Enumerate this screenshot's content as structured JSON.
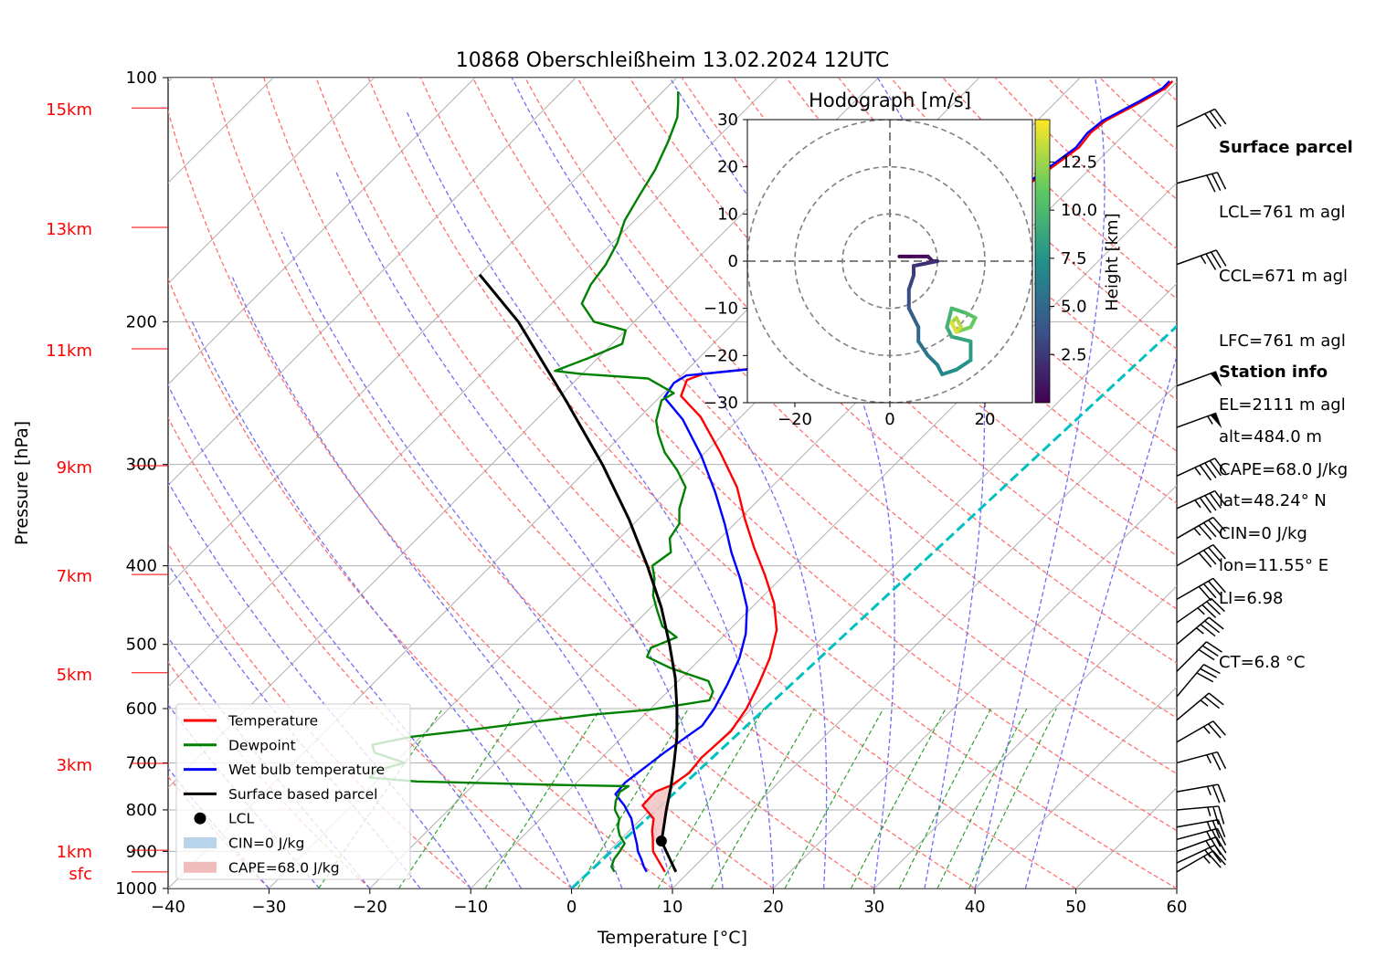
{
  "chart_data": {
    "type": "line",
    "subtype": "skew-T log-p sounding",
    "title": "10868 Oberschleißheim 13.02.2024 12UTC",
    "xlabel": "Temperature [°C]",
    "ylabel": "Pressure [hPa]",
    "xlim": [
      -40,
      60
    ],
    "ylim": [
      1000,
      100
    ],
    "x_ticks": [
      "−40",
      "−30",
      "−20",
      "−10",
      "0",
      "10",
      "20",
      "30",
      "40",
      "50",
      "60"
    ],
    "x_tick_values": [
      -40,
      -30,
      -20,
      -10,
      0,
      10,
      20,
      30,
      40,
      50,
      60
    ],
    "y_ticks": [
      "100",
      "200",
      "300",
      "400",
      "500",
      "600",
      "700",
      "800",
      "900",
      "1000"
    ],
    "y_tick_values": [
      100,
      200,
      300,
      400,
      500,
      600,
      700,
      800,
      900,
      1000
    ],
    "height_labels": [
      {
        "label": "sfc",
        "p": 954
      },
      {
        "label": "1km",
        "p": 897
      },
      {
        "label": "3km",
        "p": 701
      },
      {
        "label": "5km",
        "p": 542
      },
      {
        "label": "7km",
        "p": 410
      },
      {
        "label": "9km",
        "p": 301
      },
      {
        "label": "11km",
        "p": 216
      },
      {
        "label": "13km",
        "p": 153
      },
      {
        "label": "15km",
        "p": 109
      }
    ],
    "grid": true,
    "legend_position": "lower-left",
    "legend": [
      "Temperature",
      "Dewpoint",
      "Wet bulb temperature",
      "Surface based parcel",
      "LCL",
      "CIN=0 J/kg",
      "CAPE=68.0 J/kg"
    ],
    "lcl": {
      "p": 874,
      "t": 4.2
    },
    "series": [
      {
        "name": "Temperature",
        "color": "#ff0000",
        "points": [
          [
            7.6,
            954
          ],
          [
            6.8,
            940
          ],
          [
            5.6,
            920
          ],
          [
            4.4,
            900
          ],
          [
            3.6,
            880
          ],
          [
            3.2,
            870
          ],
          [
            2.3,
            850
          ],
          [
            1.2,
            820
          ],
          [
            -1.2,
            790
          ],
          [
            -1.3,
            760
          ],
          [
            -0.3,
            745
          ],
          [
            0.2,
            720
          ],
          [
            -0.1,
            690
          ],
          [
            0.2,
            640
          ],
          [
            -0.5,
            600
          ],
          [
            -1.7,
            560
          ],
          [
            -3.2,
            520
          ],
          [
            -5.3,
            480
          ],
          [
            -8.2,
            445
          ],
          [
            -12.0,
            410
          ],
          [
            -15.7,
            380
          ],
          [
            -19.5,
            350
          ],
          [
            -23.4,
            320
          ],
          [
            -28.5,
            290
          ],
          [
            -34.0,
            262
          ],
          [
            -38.0,
            247
          ],
          [
            -39.0,
            236
          ],
          [
            -38.0,
            232
          ],
          [
            -33.0,
            228
          ],
          [
            -30.0,
            222
          ],
          [
            -30.5,
            215
          ],
          [
            -31.0,
            209
          ],
          [
            -31.5,
            206
          ],
          [
            -32.0,
            204
          ],
          [
            -31.5,
            197
          ],
          [
            -29.5,
            190
          ],
          [
            -27.5,
            187
          ],
          [
            -26.5,
            180
          ],
          [
            -26.5,
            175
          ],
          [
            -27.0,
            167
          ],
          [
            -26.5,
            158
          ],
          [
            -25.5,
            151
          ],
          [
            -25.5,
            146
          ],
          [
            -24.5,
            140
          ],
          [
            -24.5,
            135
          ],
          [
            -23.8,
            128
          ],
          [
            -23.2,
            122
          ],
          [
            -23.5,
            117
          ],
          [
            -23.2,
            113
          ],
          [
            -21.5,
            107
          ],
          [
            -20.5,
            103
          ],
          [
            -20.5,
            101
          ]
        ]
      },
      {
        "name": "Wet bulb temperature",
        "color": "#0000ff",
        "points": [
          [
            5.8,
            954
          ],
          [
            5.0,
            940
          ],
          [
            4.0,
            920
          ],
          [
            2.9,
            900
          ],
          [
            2.0,
            880
          ],
          [
            1.5,
            870
          ],
          [
            0.5,
            850
          ],
          [
            -1.0,
            820
          ],
          [
            -3.0,
            790
          ],
          [
            -5.0,
            765
          ],
          [
            -5.2,
            740
          ],
          [
            -4.9,
            720
          ],
          [
            -4.3,
            680
          ],
          [
            -3.2,
            630
          ],
          [
            -3.7,
            600
          ],
          [
            -4.8,
            560
          ],
          [
            -6.2,
            520
          ],
          [
            -8.0,
            485
          ],
          [
            -10.5,
            450
          ],
          [
            -14.0,
            415
          ],
          [
            -17.5,
            385
          ],
          [
            -21.0,
            355
          ],
          [
            -25.0,
            325
          ],
          [
            -30.0,
            293
          ],
          [
            -35.5,
            264
          ],
          [
            -39.5,
            248
          ],
          [
            -40.0,
            238
          ],
          [
            -39.5,
            233
          ],
          [
            -34.0,
            229
          ],
          [
            -31.0,
            222
          ],
          [
            -31.2,
            215
          ],
          [
            -31.8,
            209
          ],
          [
            -32.2,
            205
          ],
          [
            -32.7,
            203
          ],
          [
            -32.2,
            197
          ],
          [
            -30.0,
            190
          ],
          [
            -28.0,
            187
          ],
          [
            -26.8,
            180
          ],
          [
            -26.8,
            175
          ],
          [
            -27.3,
            167
          ],
          [
            -26.8,
            158
          ],
          [
            -25.8,
            151
          ],
          [
            -25.8,
            146
          ],
          [
            -24.8,
            140
          ],
          [
            -24.8,
            135
          ],
          [
            -24.1,
            128
          ],
          [
            -23.5,
            122
          ],
          [
            -23.8,
            117
          ],
          [
            -23.5,
            113
          ],
          [
            -21.8,
            107
          ],
          [
            -20.8,
            103
          ],
          [
            -20.8,
            101
          ]
        ]
      },
      {
        "name": "Dewpoint",
        "color": "#008000",
        "points": [
          [
            2.6,
            954
          ],
          [
            1.8,
            940
          ],
          [
            1.3,
            920
          ],
          [
            1.1,
            900
          ],
          [
            0.8,
            880
          ],
          [
            -0.5,
            860
          ],
          [
            -1.5,
            840
          ],
          [
            -2.2,
            820
          ],
          [
            -3.5,
            800
          ],
          [
            -4.3,
            780
          ],
          [
            -4.8,
            760
          ],
          [
            -4.5,
            748
          ],
          [
            -12.0,
            745
          ],
          [
            -26.0,
            738
          ],
          [
            -31.0,
            730
          ],
          [
            -31.0,
            715
          ],
          [
            -29.0,
            700
          ],
          [
            -33.0,
            680
          ],
          [
            -34.0,
            665
          ],
          [
            -31.0,
            650
          ],
          [
            -26.0,
            638
          ],
          [
            -20.0,
            622
          ],
          [
            -15.0,
            610
          ],
          [
            -10.0,
            602
          ],
          [
            -5.0,
            586
          ],
          [
            -5.5,
            572
          ],
          [
            -7.0,
            555
          ],
          [
            -12.0,
            535
          ],
          [
            -15.5,
            518
          ],
          [
            -16.0,
            505
          ],
          [
            -14.5,
            490
          ],
          [
            -17.0,
            475
          ],
          [
            -19.0,
            455
          ],
          [
            -21.0,
            435
          ],
          [
            -22.5,
            415
          ],
          [
            -24.0,
            400
          ],
          [
            -23.5,
            385
          ],
          [
            -25.0,
            370
          ],
          [
            -25.5,
            355
          ],
          [
            -27.0,
            340
          ],
          [
            -28.5,
            320
          ],
          [
            -31.0,
            305
          ],
          [
            -34.0,
            290
          ],
          [
            -36.5,
            275
          ],
          [
            -38.0,
            265
          ],
          [
            -39.5,
            250
          ],
          [
            -39.0,
            245
          ],
          [
            -43.0,
            235
          ],
          [
            -50.0,
            232
          ],
          [
            -53.0,
            230
          ],
          [
            -51.0,
            222
          ],
          [
            -49.0,
            213
          ],
          [
            -50.0,
            205
          ],
          [
            -54.0,
            200
          ],
          [
            -57.0,
            190
          ],
          [
            -58.0,
            180
          ],
          [
            -58.5,
            170
          ],
          [
            -59.5,
            160
          ],
          [
            -61.0,
            150
          ],
          [
            -62.0,
            140
          ],
          [
            -63.0,
            130
          ],
          [
            -64.5,
            120
          ],
          [
            -66.0,
            112
          ],
          [
            -67.5,
            107
          ],
          [
            -68.5,
            104
          ]
        ]
      },
      {
        "name": "Surface based parcel",
        "color": "#000000",
        "points": [
          [
            8.7,
            954
          ],
          [
            4.2,
            874
          ],
          [
            3.4,
            850
          ],
          [
            1.6,
            800
          ],
          [
            -0.2,
            750
          ],
          [
            -2.3,
            700
          ],
          [
            -4.6,
            650
          ],
          [
            -7.4,
            600
          ],
          [
            -10.6,
            550
          ],
          [
            -14.5,
            500
          ],
          [
            -19.0,
            450
          ],
          [
            -24.5,
            400
          ],
          [
            -31.0,
            350
          ],
          [
            -39.0,
            300
          ],
          [
            -49.0,
            250
          ],
          [
            -61.5,
            200
          ],
          [
            -70.0,
            175
          ]
        ]
      }
    ],
    "mixing_ratio_guide": {
      "name": "",
      "color": "#00c0c0",
      "p_start": 1000,
      "t_start": 0.0,
      "t_at_100": 10.0
    },
    "hodograph": {
      "title": "Hodograph [m/s]",
      "xlim": [
        -30,
        30
      ],
      "ylim": [
        -30,
        30
      ],
      "x_ticks": [
        "−20",
        "0",
        "20"
      ],
      "x_tick_values": [
        -20,
        0,
        20
      ],
      "y_ticks": [
        "30",
        "20",
        "10",
        "0",
        "−10",
        "−20",
        "−30"
      ],
      "y_tick_values": [
        30,
        20,
        10,
        0,
        -10,
        -20,
        -30
      ],
      "rings": [
        10,
        20,
        30
      ],
      "colorbar_label": "Height [km]",
      "colorbar_ticks": [
        "2.5",
        "5.0",
        "7.5",
        "10.0",
        "12.5"
      ],
      "colorbar_tick_values": [
        2.5,
        5.0,
        7.5,
        10.0,
        12.5
      ],
      "colorbar_range": [
        0,
        14.7
      ],
      "points": [
        {
          "u": 2,
          "v": 1,
          "h": 0.0
        },
        {
          "u": 5,
          "v": 1,
          "h": 0.5
        },
        {
          "u": 8,
          "v": 1,
          "h": 1.0
        },
        {
          "u": 9,
          "v": 0,
          "h": 1.5
        },
        {
          "u": 10,
          "v": 0,
          "h": 2.0
        },
        {
          "u": 5,
          "v": -1,
          "h": 2.5
        },
        {
          "u": 5,
          "v": -3,
          "h": 3.0
        },
        {
          "u": 4,
          "v": -6,
          "h": 3.5
        },
        {
          "u": 4,
          "v": -10,
          "h": 4.0
        },
        {
          "u": 5,
          "v": -12,
          "h": 4.5
        },
        {
          "u": 6,
          "v": -14,
          "h": 5.0
        },
        {
          "u": 6,
          "v": -17,
          "h": 5.5
        },
        {
          "u": 8,
          "v": -20,
          "h": 6.0
        },
        {
          "u": 10,
          "v": -22,
          "h": 6.5
        },
        {
          "u": 11,
          "v": -24,
          "h": 7.0
        },
        {
          "u": 14,
          "v": -23,
          "h": 7.5
        },
        {
          "u": 17,
          "v": -21,
          "h": 8.0
        },
        {
          "u": 17,
          "v": -17,
          "h": 8.5
        },
        {
          "u": 13,
          "v": -16,
          "h": 9.0
        },
        {
          "u": 12,
          "v": -14,
          "h": 9.5
        },
        {
          "u": 13,
          "v": -10,
          "h": 10.0
        },
        {
          "u": 16,
          "v": -11,
          "h": 10.5
        },
        {
          "u": 18,
          "v": -12,
          "h": 11.0
        },
        {
          "u": 17,
          "v": -14,
          "h": 11.5
        },
        {
          "u": 14,
          "v": -15,
          "h": 12.0
        },
        {
          "u": 13,
          "v": -13,
          "h": 12.5
        },
        {
          "u": 14,
          "v": -12,
          "h": 13.0
        },
        {
          "u": 15,
          "v": -14,
          "h": 13.5
        },
        {
          "u": 14,
          "v": -15,
          "h": 14.0
        },
        {
          "u": 13,
          "v": -13,
          "h": 14.5
        }
      ]
    },
    "wind_barbs": [
      {
        "p": 954,
        "speed_kt": 25,
        "dir_deg": 240
      },
      {
        "p": 930,
        "speed_kt": 25,
        "dir_deg": 245
      },
      {
        "p": 900,
        "speed_kt": 25,
        "dir_deg": 250
      },
      {
        "p": 870,
        "speed_kt": 25,
        "dir_deg": 255
      },
      {
        "p": 840,
        "speed_kt": 25,
        "dir_deg": 260
      },
      {
        "p": 800,
        "speed_kt": 25,
        "dir_deg": 265
      },
      {
        "p": 760,
        "speed_kt": 25,
        "dir_deg": 260
      },
      {
        "p": 700,
        "speed_kt": 25,
        "dir_deg": 255
      },
      {
        "p": 660,
        "speed_kt": 25,
        "dir_deg": 240
      },
      {
        "p": 620,
        "speed_kt": 25,
        "dir_deg": 230
      },
      {
        "p": 580,
        "speed_kt": 30,
        "dir_deg": 220
      },
      {
        "p": 540,
        "speed_kt": 30,
        "dir_deg": 225
      },
      {
        "p": 500,
        "speed_kt": 35,
        "dir_deg": 230
      },
      {
        "p": 470,
        "speed_kt": 35,
        "dir_deg": 235
      },
      {
        "p": 440,
        "speed_kt": 40,
        "dir_deg": 240
      },
      {
        "p": 400,
        "speed_kt": 40,
        "dir_deg": 240
      },
      {
        "p": 370,
        "speed_kt": 45,
        "dir_deg": 240
      },
      {
        "p": 340,
        "speed_kt": 45,
        "dir_deg": 245
      },
      {
        "p": 310,
        "speed_kt": 45,
        "dir_deg": 245
      },
      {
        "p": 270,
        "speed_kt": 55,
        "dir_deg": 250
      },
      {
        "p": 240,
        "speed_kt": 50,
        "dir_deg": 250
      },
      {
        "p": 170,
        "speed_kt": 35,
        "dir_deg": 250
      },
      {
        "p": 135,
        "speed_kt": 30,
        "dir_deg": 255
      },
      {
        "p": 115,
        "speed_kt": 30,
        "dir_deg": 245
      }
    ]
  },
  "legend_items": [
    {
      "label": "Temperature",
      "color": "#ff0000",
      "kind": "line"
    },
    {
      "label": "Dewpoint",
      "color": "#008000",
      "kind": "line"
    },
    {
      "label": "Wet bulb temperature",
      "color": "#0000ff",
      "kind": "line"
    },
    {
      "label": "Surface based parcel",
      "color": "#000000",
      "kind": "line"
    },
    {
      "label": "LCL",
      "color": "#000000",
      "kind": "dot"
    },
    {
      "label": "CIN=0 J/kg",
      "color": "#b8d4ea",
      "kind": "patch"
    },
    {
      "label": "CAPE=68.0 J/kg",
      "color": "#f0bcbc",
      "kind": "patch"
    }
  ],
  "surface_parcel": {
    "heading": "Surface parcel",
    "lines": [
      "LCL=761 m agl",
      "CCL=671 m agl",
      "LFC=761 m agl",
      "EL=2111 m agl",
      "CAPE=68.0 J/kg",
      "CIN=0 J/kg",
      "LI=6.98",
      "CT=6.8 °C"
    ]
  },
  "station_info": {
    "heading": "Station info",
    "lines": [
      "alt=484.0 m",
      "lat=48.24° N",
      "lon=11.55° E"
    ]
  },
  "colors": {
    "dry_adiabat": "#ff7070",
    "moist_adiabat": "#7070f0",
    "mixing_ratio": "#30a030",
    "isotherm": "#b0b0b0",
    "height_label": "#ff0000",
    "cape_fill": "#f4c8c8"
  }
}
